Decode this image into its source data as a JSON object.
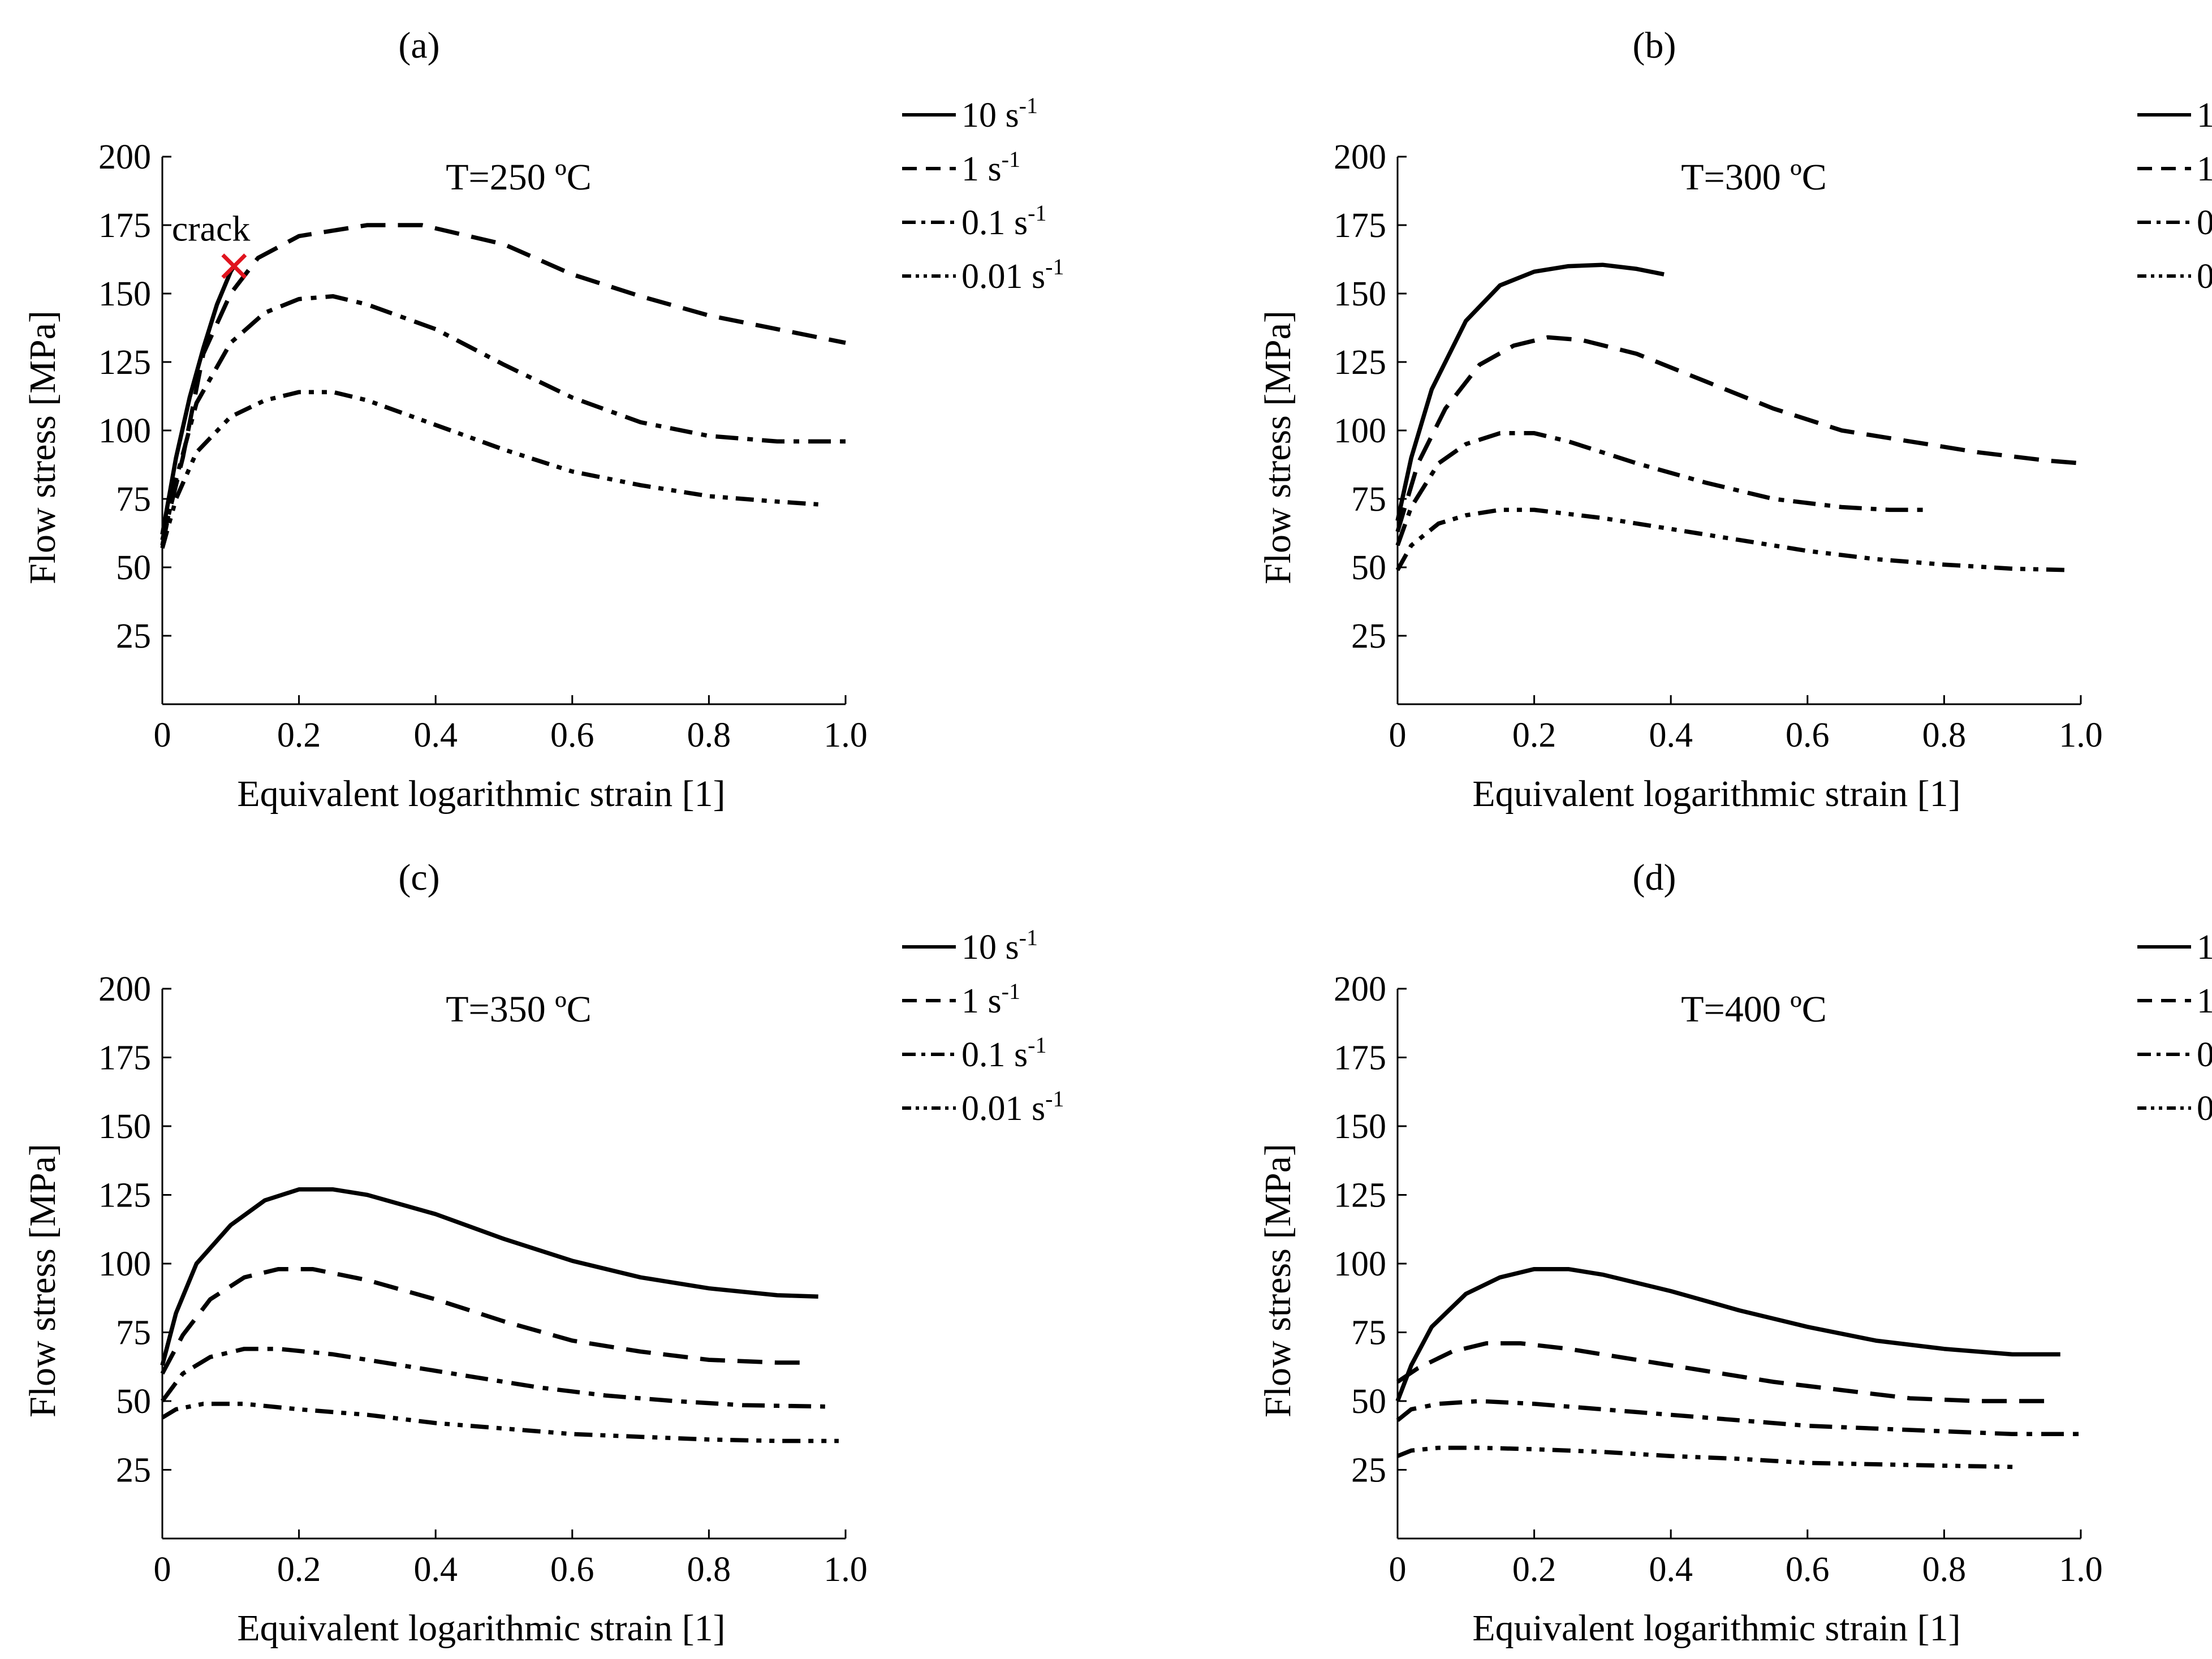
{
  "chart_data": [
    {
      "panel": "(a)",
      "type": "line",
      "temperature_label": "T=250 ºC",
      "xlabel": "Equivalent logarithmic strain [1]",
      "ylabel": "Flow stress [MPa]",
      "xlim": [
        0,
        1.0
      ],
      "ylim": [
        0,
        200
      ],
      "xticks": [
        "0",
        "0.2",
        "0.4",
        "0.6",
        "0.8",
        "1.0"
      ],
      "yticks": [
        "25",
        "50",
        "75",
        "100",
        "125",
        "150",
        "175",
        "200"
      ],
      "annotation": {
        "text": "crack",
        "x": 0.105,
        "y": 160
      },
      "series": [
        {
          "name": "10",
          "style": "solid",
          "points": [
            [
              0,
              62
            ],
            [
              0.02,
              90
            ],
            [
              0.04,
              112
            ],
            [
              0.06,
              130
            ],
            [
              0.08,
              146
            ],
            [
              0.1,
              158
            ],
            [
              0.105,
              160
            ]
          ]
        },
        {
          "name": "1",
          "style": "dash",
          "points": [
            [
              0,
              60
            ],
            [
              0.03,
              90
            ],
            [
              0.06,
              128
            ],
            [
              0.1,
              150
            ],
            [
              0.14,
              163
            ],
            [
              0.2,
              171
            ],
            [
              0.3,
              175
            ],
            [
              0.38,
              175
            ],
            [
              0.5,
              168
            ],
            [
              0.6,
              157
            ],
            [
              0.7,
              149
            ],
            [
              0.8,
              142
            ],
            [
              0.9,
              137
            ],
            [
              1.0,
              132
            ]
          ]
        },
        {
          "name": "0.1",
          "style": "dashdot",
          "points": [
            [
              0,
              58
            ],
            [
              0.02,
              82
            ],
            [
              0.05,
              110
            ],
            [
              0.1,
              132
            ],
            [
              0.15,
              143
            ],
            [
              0.2,
              148
            ],
            [
              0.25,
              149
            ],
            [
              0.3,
              146
            ],
            [
              0.4,
              137
            ],
            [
              0.5,
              124
            ],
            [
              0.6,
              112
            ],
            [
              0.7,
              103
            ],
            [
              0.8,
              98
            ],
            [
              0.9,
              96
            ],
            [
              1.0,
              96
            ]
          ]
        },
        {
          "name": "0.01",
          "style": "dashdotdot",
          "points": [
            [
              0,
              57
            ],
            [
              0.02,
              75
            ],
            [
              0.05,
              92
            ],
            [
              0.1,
              105
            ],
            [
              0.15,
              111
            ],
            [
              0.2,
              114
            ],
            [
              0.25,
              114
            ],
            [
              0.3,
              111
            ],
            [
              0.4,
              102
            ],
            [
              0.5,
              93
            ],
            [
              0.6,
              85
            ],
            [
              0.7,
              80
            ],
            [
              0.8,
              76
            ],
            [
              0.9,
              74
            ],
            [
              0.96,
              73
            ]
          ]
        }
      ]
    },
    {
      "panel": "(b)",
      "type": "line",
      "temperature_label": "T=300 ºC",
      "xlabel": "Equivalent logarithmic strain [1]",
      "ylabel": "Flow stress [MPa]",
      "xlim": [
        0,
        1.0
      ],
      "ylim": [
        0,
        200
      ],
      "xticks": [
        "0",
        "0.2",
        "0.4",
        "0.6",
        "0.8",
        "1.0"
      ],
      "yticks": [
        "25",
        "50",
        "75",
        "100",
        "125",
        "150",
        "175",
        "200"
      ],
      "series": [
        {
          "name": "10",
          "style": "solid",
          "points": [
            [
              0,
              67
            ],
            [
              0.02,
              90
            ],
            [
              0.05,
              115
            ],
            [
              0.1,
              140
            ],
            [
              0.15,
              153
            ],
            [
              0.2,
              158
            ],
            [
              0.25,
              160
            ],
            [
              0.3,
              160.5
            ],
            [
              0.35,
              159
            ],
            [
              0.39,
              157
            ]
          ]
        },
        {
          "name": "1",
          "style": "dash",
          "points": [
            [
              0,
              63
            ],
            [
              0.03,
              88
            ],
            [
              0.07,
              108
            ],
            [
              0.12,
              124
            ],
            [
              0.17,
              131
            ],
            [
              0.22,
              134
            ],
            [
              0.27,
              133
            ],
            [
              0.35,
              128
            ],
            [
              0.45,
              118
            ],
            [
              0.55,
              108
            ],
            [
              0.65,
              100
            ],
            [
              0.75,
              96
            ],
            [
              0.85,
              92
            ],
            [
              0.95,
              89
            ],
            [
              1.0,
              88
            ]
          ]
        },
        {
          "name": "0.1",
          "style": "dashdot",
          "points": [
            [
              0,
              58
            ],
            [
              0.02,
              72
            ],
            [
              0.06,
              88
            ],
            [
              0.1,
              95
            ],
            [
              0.15,
              99
            ],
            [
              0.2,
              99
            ],
            [
              0.25,
              96
            ],
            [
              0.35,
              88
            ],
            [
              0.45,
              81
            ],
            [
              0.55,
              75
            ],
            [
              0.65,
              72
            ],
            [
              0.72,
              71
            ],
            [
              0.77,
              71
            ]
          ]
        },
        {
          "name": "0.01",
          "style": "dashdotdot",
          "points": [
            [
              0,
              49
            ],
            [
              0.02,
              58
            ],
            [
              0.06,
              66
            ],
            [
              0.1,
              69
            ],
            [
              0.15,
              71
            ],
            [
              0.2,
              71
            ],
            [
              0.3,
              68
            ],
            [
              0.4,
              64
            ],
            [
              0.5,
              60
            ],
            [
              0.6,
              56
            ],
            [
              0.7,
              53
            ],
            [
              0.8,
              51
            ],
            [
              0.9,
              49.5
            ],
            [
              0.98,
              49
            ]
          ]
        }
      ]
    },
    {
      "panel": "(c)",
      "type": "line",
      "temperature_label": "T=350 ºC",
      "xlabel": "Equivalent logarithmic strain [1]",
      "ylabel": "Flow stress [MPa]",
      "xlim": [
        0,
        1.0
      ],
      "ylim": [
        0,
        200
      ],
      "xticks": [
        "0",
        "0.2",
        "0.4",
        "0.6",
        "0.8",
        "1.0"
      ],
      "yticks": [
        "25",
        "50",
        "75",
        "100",
        "125",
        "150",
        "175",
        "200"
      ],
      "series": [
        {
          "name": "10",
          "style": "solid",
          "points": [
            [
              0,
              63
            ],
            [
              0.02,
              82
            ],
            [
              0.05,
              100
            ],
            [
              0.1,
              114
            ],
            [
              0.15,
              123
            ],
            [
              0.2,
              127
            ],
            [
              0.25,
              127
            ],
            [
              0.3,
              125
            ],
            [
              0.4,
              118
            ],
            [
              0.5,
              109
            ],
            [
              0.6,
              101
            ],
            [
              0.7,
              95
            ],
            [
              0.8,
              91
            ],
            [
              0.9,
              88.5
            ],
            [
              0.96,
              88
            ]
          ]
        },
        {
          "name": "1",
          "style": "dash",
          "points": [
            [
              0,
              60
            ],
            [
              0.03,
              74
            ],
            [
              0.07,
              87
            ],
            [
              0.12,
              95
            ],
            [
              0.17,
              98
            ],
            [
              0.22,
              98
            ],
            [
              0.3,
              94
            ],
            [
              0.4,
              87
            ],
            [
              0.5,
              79
            ],
            [
              0.6,
              72
            ],
            [
              0.7,
              68
            ],
            [
              0.8,
              65
            ],
            [
              0.9,
              64
            ],
            [
              0.95,
              64
            ]
          ]
        },
        {
          "name": "0.1",
          "style": "dashdot",
          "points": [
            [
              0,
              50
            ],
            [
              0.03,
              60
            ],
            [
              0.07,
              66
            ],
            [
              0.12,
              69
            ],
            [
              0.17,
              69
            ],
            [
              0.25,
              67
            ],
            [
              0.35,
              63
            ],
            [
              0.45,
              59
            ],
            [
              0.55,
              55
            ],
            [
              0.65,
              52
            ],
            [
              0.75,
              50
            ],
            [
              0.85,
              48.5
            ],
            [
              0.97,
              48
            ]
          ]
        },
        {
          "name": "0.01",
          "style": "dashdotdot",
          "points": [
            [
              0,
              44
            ],
            [
              0.02,
              47
            ],
            [
              0.06,
              49
            ],
            [
              0.12,
              49
            ],
            [
              0.2,
              47
            ],
            [
              0.3,
              45
            ],
            [
              0.4,
              42
            ],
            [
              0.5,
              40
            ],
            [
              0.6,
              38
            ],
            [
              0.7,
              37
            ],
            [
              0.8,
              36
            ],
            [
              0.9,
              35.5
            ],
            [
              0.99,
              35.5
            ]
          ]
        }
      ]
    },
    {
      "panel": "(d)",
      "type": "line",
      "temperature_label": "T=400 ºC",
      "xlabel": "Equivalent logarithmic strain [1]",
      "ylabel": "Flow stress [MPa]",
      "xlim": [
        0,
        1.0
      ],
      "ylim": [
        0,
        200
      ],
      "xticks": [
        "0",
        "0.2",
        "0.4",
        "0.6",
        "0.8",
        "1.0"
      ],
      "yticks": [
        "25",
        "50",
        "75",
        "100",
        "125",
        "150",
        "175",
        "200"
      ],
      "series": [
        {
          "name": "10",
          "style": "solid",
          "points": [
            [
              0,
              50
            ],
            [
              0.02,
              63
            ],
            [
              0.05,
              77
            ],
            [
              0.1,
              89
            ],
            [
              0.15,
              95
            ],
            [
              0.2,
              98
            ],
            [
              0.25,
              98
            ],
            [
              0.3,
              96
            ],
            [
              0.4,
              90
            ],
            [
              0.5,
              83
            ],
            [
              0.6,
              77
            ],
            [
              0.7,
              72
            ],
            [
              0.8,
              69
            ],
            [
              0.9,
              67
            ],
            [
              0.97,
              67
            ]
          ]
        },
        {
          "name": "1",
          "style": "dash",
          "points": [
            [
              0,
              57
            ],
            [
              0.03,
              62
            ],
            [
              0.08,
              68
            ],
            [
              0.13,
              71
            ],
            [
              0.18,
              71
            ],
            [
              0.25,
              69
            ],
            [
              0.35,
              65
            ],
            [
              0.45,
              61
            ],
            [
              0.55,
              57
            ],
            [
              0.65,
              54
            ],
            [
              0.75,
              51
            ],
            [
              0.85,
              50
            ],
            [
              0.95,
              50
            ]
          ]
        },
        {
          "name": "0.1",
          "style": "dashdot",
          "points": [
            [
              0,
              43
            ],
            [
              0.02,
              47
            ],
            [
              0.06,
              49
            ],
            [
              0.12,
              50
            ],
            [
              0.2,
              49
            ],
            [
              0.3,
              47
            ],
            [
              0.4,
              45
            ],
            [
              0.5,
              43
            ],
            [
              0.6,
              41
            ],
            [
              0.7,
              40
            ],
            [
              0.8,
              39
            ],
            [
              0.9,
              38
            ],
            [
              1.0,
              38
            ]
          ]
        },
        {
          "name": "0.01",
          "style": "dashdotdot",
          "points": [
            [
              0,
              30
            ],
            [
              0.02,
              32
            ],
            [
              0.06,
              33
            ],
            [
              0.12,
              33
            ],
            [
              0.2,
              32.5
            ],
            [
              0.3,
              31.5
            ],
            [
              0.4,
              30
            ],
            [
              0.5,
              29
            ],
            [
              0.6,
              27.5
            ],
            [
              0.7,
              27
            ],
            [
              0.8,
              26.5
            ],
            [
              0.91,
              26
            ]
          ]
        }
      ]
    }
  ],
  "legend": [
    {
      "number": "10",
      "unit": "s",
      "exp": "-1"
    },
    {
      "number": "1",
      "unit": "s",
      "exp": "-1"
    },
    {
      "number": "0.1",
      "unit": "s",
      "exp": "-1"
    },
    {
      "number": "0.01",
      "unit": "s",
      "exp": "-1"
    }
  ],
  "colors": {
    "line": "#000000",
    "crack_marker": "#e0141e"
  }
}
